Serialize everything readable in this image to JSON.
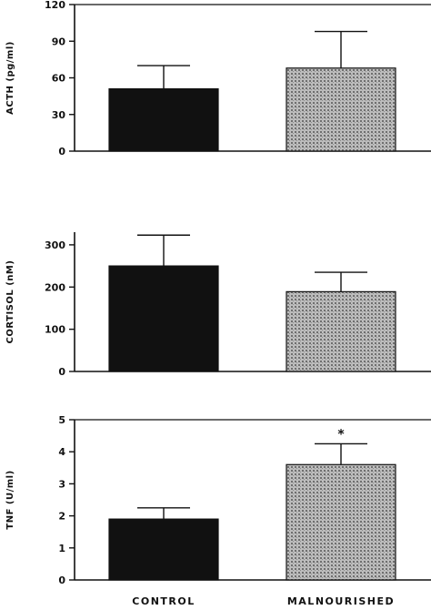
{
  "chart_data": [
    {
      "type": "bar",
      "categories": [
        "CONTROL",
        "MALNOURISHED"
      ],
      "values": [
        51,
        68
      ],
      "errors": [
        19,
        30
      ],
      "ylabel": "ACTH (pg/ml)",
      "ylim": [
        0,
        120
      ],
      "yticks": [
        "0",
        "30",
        "60",
        "90",
        "120"
      ],
      "annotations": [],
      "grid": false
    },
    {
      "type": "bar",
      "categories": [
        "CONTROL",
        "MALNOURISHED"
      ],
      "values": [
        250,
        189
      ],
      "errors": [
        73,
        46
      ],
      "ylabel": "CORTISOL (nM)",
      "ylim": [
        0,
        330
      ],
      "yticks": [
        "0",
        "100",
        "200",
        "300"
      ],
      "annotations": [],
      "grid": false
    },
    {
      "type": "bar",
      "categories": [
        "CONTROL",
        "MALNOURISHED"
      ],
      "values": [
        1.9,
        3.6
      ],
      "errors": [
        0.35,
        0.65
      ],
      "ylabel": "TNF (U/ml)",
      "ylim": [
        0,
        5
      ],
      "yticks": [
        "0",
        "1",
        "2",
        "3",
        "4",
        "5"
      ],
      "annotations": [
        "*"
      ],
      "grid": false
    }
  ],
  "x_category_labels": [
    "CONTROL",
    "MALNOURISHED"
  ],
  "colors": {
    "control_bar": "#111111",
    "malnourished_bar": "#9a9a9a",
    "axis": "#111111"
  }
}
